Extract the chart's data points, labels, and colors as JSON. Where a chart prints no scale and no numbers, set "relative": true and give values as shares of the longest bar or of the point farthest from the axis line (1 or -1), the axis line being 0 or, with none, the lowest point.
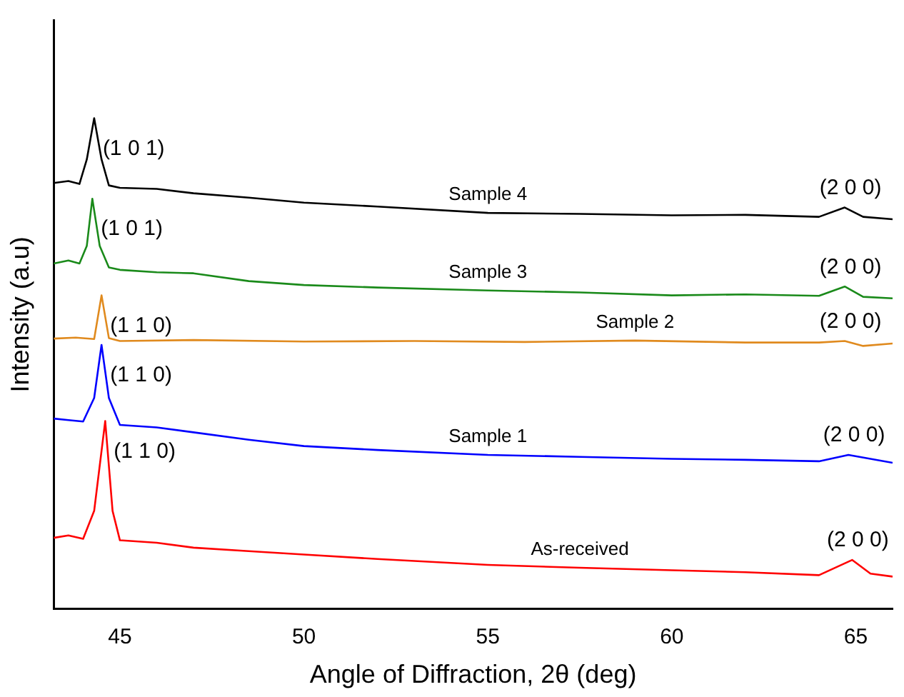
{
  "chart_data": {
    "type": "line",
    "relative": true,
    "xlabel": "Angle of Diffraction, 2θ (deg)",
    "ylabel": "Intensity (a.u)",
    "xlim": [
      43.2,
      66
    ],
    "xticks": [
      45,
      50,
      55,
      60,
      65
    ],
    "legend": false,
    "grid": false,
    "marker": "none",
    "line_style": "solid",
    "series": [
      {
        "name": "Sample 4",
        "color": "#000000",
        "x": [
          43.2,
          43.6,
          43.9,
          44.1,
          44.3,
          44.5,
          44.7,
          45,
          46,
          47,
          48.5,
          50,
          52,
          55,
          57.5,
          60,
          62,
          64,
          64.7,
          65.2,
          66
        ],
        "values": [
          0.868,
          0.872,
          0.866,
          0.916,
          1.0,
          0.916,
          0.863,
          0.858,
          0.856,
          0.847,
          0.838,
          0.828,
          0.82,
          0.807,
          0.805,
          0.802,
          0.803,
          0.799,
          0.818,
          0.799,
          0.794
        ]
      },
      {
        "name": "Sample 3",
        "color": "#1a8a1a",
        "x": [
          43.2,
          43.6,
          43.9,
          44.1,
          44.25,
          44.45,
          44.7,
          45,
          46,
          47,
          48.5,
          50,
          52,
          55,
          57.5,
          60,
          62,
          64,
          64.7,
          65.2,
          66
        ],
        "values": [
          0.704,
          0.71,
          0.704,
          0.74,
          0.836,
          0.74,
          0.696,
          0.691,
          0.686,
          0.684,
          0.668,
          0.66,
          0.655,
          0.649,
          0.645,
          0.639,
          0.641,
          0.638,
          0.657,
          0.636,
          0.633
        ]
      },
      {
        "name": "Sample 2",
        "color": "#e08a1e",
        "x": [
          43.2,
          43.8,
          44.3,
          44.5,
          44.7,
          45,
          47,
          50,
          53,
          56,
          59,
          62,
          64,
          64.7,
          65.2,
          66
        ],
        "values": [
          0.551,
          0.553,
          0.55,
          0.639,
          0.552,
          0.546,
          0.548,
          0.545,
          0.546,
          0.544,
          0.547,
          0.543,
          0.543,
          0.546,
          0.536,
          0.541
        ]
      },
      {
        "name": "Sample 1",
        "color": "#0000ff",
        "x": [
          43.2,
          43.6,
          44.0,
          44.3,
          44.5,
          44.7,
          45,
          46,
          47,
          48.5,
          50,
          52,
          55,
          57.5,
          60,
          62,
          64,
          64.8,
          66
        ],
        "values": [
          0.388,
          0.385,
          0.382,
          0.43,
          0.538,
          0.43,
          0.375,
          0.37,
          0.36,
          0.345,
          0.332,
          0.324,
          0.314,
          0.31,
          0.306,
          0.304,
          0.301,
          0.314,
          0.298
        ]
      },
      {
        "name": "As-received",
        "color": "#ff0000",
        "x": [
          43.2,
          43.6,
          44.0,
          44.3,
          44.6,
          44.8,
          45,
          46,
          47,
          48.5,
          50,
          52,
          55,
          57.5,
          60,
          62,
          64,
          64.9,
          65.4,
          66
        ],
        "values": [
          0.145,
          0.15,
          0.143,
          0.2,
          0.383,
          0.2,
          0.14,
          0.135,
          0.125,
          0.118,
          0.111,
          0.102,
          0.09,
          0.084,
          0.079,
          0.075,
          0.069,
          0.1,
          0.072,
          0.066
        ]
      }
    ],
    "annotations": [
      {
        "text": "(1 0 1)",
        "x": 44.3,
        "y": 1.0
      },
      {
        "text": "(2 0 0)",
        "x": 64.7,
        "y": 0.818
      },
      {
        "text": "(1 0 1)",
        "x": 44.25,
        "y": 0.836
      },
      {
        "text": "(2 0 0)",
        "x": 64.7,
        "y": 0.657
      },
      {
        "text": "(1 1 0)",
        "x": 44.5,
        "y": 0.639
      },
      {
        "text": "(2 0 0)",
        "x": 64.7,
        "y": 0.546
      },
      {
        "text": "(1 1 0)",
        "x": 44.5,
        "y": 0.538
      },
      {
        "text": "(2 0 0)",
        "x": 64.8,
        "y": 0.314
      },
      {
        "text": "(1 1 0)",
        "x": 44.6,
        "y": 0.383
      },
      {
        "text": "(2 0 0)",
        "x": 64.9,
        "y": 0.1
      }
    ]
  }
}
